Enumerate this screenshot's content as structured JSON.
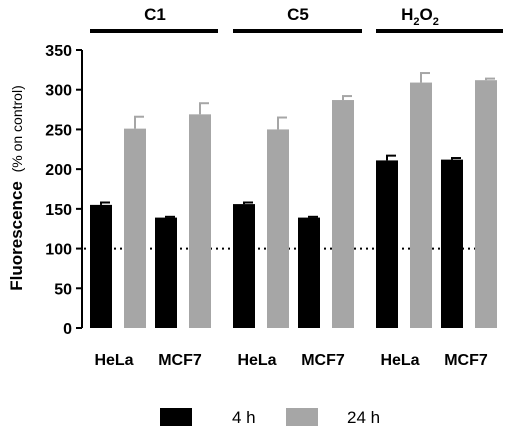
{
  "chart_data": {
    "type": "bar",
    "ylabel_main": "Fluorescence",
    "ylabel_paren": "(% on control)",
    "ylim": [
      0,
      350
    ],
    "yticks": [
      "0",
      "50",
      "100",
      "150",
      "200",
      "250",
      "300",
      "350"
    ],
    "ytick_values": [
      0,
      50,
      100,
      150,
      200,
      250,
      300,
      350
    ],
    "reference_line": 100,
    "groups": [
      {
        "name": "C1",
        "name_sub": "",
        "name_tail": "",
        "categories": [
          "HeLa",
          "MCF7"
        ]
      },
      {
        "name": "C5",
        "name_sub": "",
        "name_tail": "",
        "categories": [
          "HeLa",
          "MCF7"
        ]
      },
      {
        "name": "H",
        "name_sub": "2",
        "name_tail": "O",
        "name_sub2": "2",
        "categories": [
          "HeLa",
          "MCF7"
        ]
      }
    ],
    "series": [
      {
        "name": "4 h",
        "color": "#000000",
        "values": [
          155,
          139,
          156,
          139,
          211,
          212
        ],
        "errors": [
          3,
          1,
          2,
          1,
          6,
          2
        ]
      },
      {
        "name": "24 h",
        "color": "#a6a6a6",
        "values": [
          251,
          269,
          250,
          287,
          309,
          312
        ],
        "errors": [
          15,
          14,
          15,
          5,
          12,
          2
        ]
      }
    ],
    "legend_position": "bottom",
    "grid": false
  }
}
